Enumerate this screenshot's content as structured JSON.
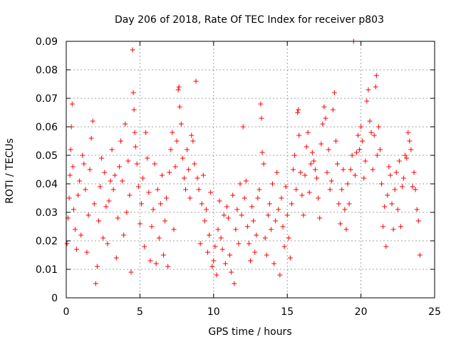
{
  "chart_data": {
    "type": "scatter",
    "title": "Day 206 of 2018, Rate Of TEC Index for receiver p803",
    "xlabel": "GPS time / hours",
    "ylabel": "ROTI / TECUs",
    "xlim": [
      0,
      25
    ],
    "ylim": [
      0,
      0.09
    ],
    "xticks": [
      0,
      5,
      10,
      15,
      20,
      25
    ],
    "yticks": [
      0,
      0.01,
      0.02,
      0.03,
      0.04,
      0.05,
      0.06,
      0.07,
      0.08,
      0.09
    ],
    "xtick_labels": [
      "0",
      "5",
      "10",
      "15",
      "20",
      "25"
    ],
    "ytick_labels": [
      "0",
      "0.01",
      "0.02",
      "0.03",
      "0.04",
      "0.05",
      "0.06",
      "0.07",
      "0.08",
      "0.09"
    ],
    "grid": true,
    "marker": "plus",
    "color": "#ff0000",
    "points": [
      [
        0.05,
        0.019
      ],
      [
        0.12,
        0.028
      ],
      [
        0.2,
        0.035
      ],
      [
        0.25,
        0.043
      ],
      [
        0.3,
        0.052
      ],
      [
        0.35,
        0.06
      ],
      [
        0.4,
        0.068
      ],
      [
        0.45,
        0.046
      ],
      [
        0.5,
        0.031
      ],
      [
        0.6,
        0.024
      ],
      [
        0.7,
        0.017
      ],
      [
        0.8,
        0.036
      ],
      [
        0.9,
        0.041
      ],
      [
        1.0,
        0.022
      ],
      [
        1.1,
        0.05
      ],
      [
        1.2,
        0.047
      ],
      [
        1.3,
        0.038
      ],
      [
        1.4,
        0.016
      ],
      [
        1.5,
        0.029
      ],
      [
        1.6,
        0.045
      ],
      [
        1.7,
        0.056
      ],
      [
        1.8,
        0.062
      ],
      [
        1.9,
        0.033
      ],
      [
        2.0,
        0.005
      ],
      [
        2.1,
        0.011
      ],
      [
        2.2,
        0.027
      ],
      [
        2.3,
        0.039
      ],
      [
        2.4,
        0.049
      ],
      [
        2.5,
        0.021
      ],
      [
        2.6,
        0.044
      ],
      [
        2.7,
        0.032
      ],
      [
        2.8,
        0.019
      ],
      [
        2.9,
        0.034
      ],
      [
        3.0,
        0.041
      ],
      [
        3.1,
        0.052
      ],
      [
        3.2,
        0.038
      ],
      [
        3.3,
        0.043
      ],
      [
        3.4,
        0.014
      ],
      [
        3.5,
        0.028
      ],
      [
        3.6,
        0.046
      ],
      [
        3.7,
        0.055
      ],
      [
        3.8,
        0.041
      ],
      [
        3.9,
        0.022
      ],
      [
        4.0,
        0.061
      ],
      [
        4.1,
        0.03
      ],
      [
        4.2,
        0.048
      ],
      [
        4.3,
        0.036
      ],
      [
        4.4,
        0.009
      ],
      [
        4.5,
        0.087
      ],
      [
        4.55,
        0.072
      ],
      [
        4.6,
        0.066
      ],
      [
        4.65,
        0.058
      ],
      [
        4.7,
        0.053
      ],
      [
        4.8,
        0.047
      ],
      [
        4.9,
        0.039
      ],
      [
        5.0,
        0.026
      ],
      [
        5.1,
        0.033
      ],
      [
        5.2,
        0.042
      ],
      [
        5.3,
        0.018
      ],
      [
        5.4,
        0.058
      ],
      [
        5.5,
        0.049
      ],
      [
        5.6,
        0.037
      ],
      [
        5.7,
        0.013
      ],
      [
        5.8,
        0.025
      ],
      [
        5.9,
        0.031
      ],
      [
        6.0,
        0.047
      ],
      [
        6.1,
        0.012
      ],
      [
        6.2,
        0.038
      ],
      [
        6.3,
        0.021
      ],
      [
        6.4,
        0.033
      ],
      [
        6.5,
        0.043
      ],
      [
        6.6,
        0.015
      ],
      [
        6.7,
        0.027
      ],
      [
        6.8,
        0.035
      ],
      [
        6.9,
        0.011
      ],
      [
        7.0,
        0.044
      ],
      [
        7.1,
        0.052
      ],
      [
        7.2,
        0.058
      ],
      [
        7.3,
        0.024
      ],
      [
        7.4,
        0.046
      ],
      [
        7.5,
        0.055
      ],
      [
        7.6,
        0.073
      ],
      [
        7.65,
        0.074
      ],
      [
        7.7,
        0.067
      ],
      [
        7.8,
        0.061
      ],
      [
        7.9,
        0.049
      ],
      [
        8.0,
        0.042
      ],
      [
        8.1,
        0.038
      ],
      [
        8.2,
        0.052
      ],
      [
        8.3,
        0.045
      ],
      [
        8.4,
        0.035
      ],
      [
        8.5,
        0.057
      ],
      [
        8.6,
        0.055
      ],
      [
        8.7,
        0.047
      ],
      [
        8.8,
        0.076
      ],
      [
        8.9,
        0.042
      ],
      [
        9.0,
        0.038
      ],
      [
        9.1,
        0.019
      ],
      [
        9.2,
        0.033
      ],
      [
        9.3,
        0.043
      ],
      [
        9.4,
        0.027
      ],
      [
        9.5,
        0.031
      ],
      [
        9.6,
        0.016
      ],
      [
        9.7,
        0.022
      ],
      [
        9.8,
        0.037
      ],
      [
        9.9,
        0.011
      ],
      [
        10.0,
        0.013
      ],
      [
        10.1,
        0.018
      ],
      [
        10.2,
        0.008
      ],
      [
        10.3,
        0.024
      ],
      [
        10.4,
        0.034
      ],
      [
        10.5,
        0.021
      ],
      [
        10.6,
        0.017
      ],
      [
        10.7,
        0.029
      ],
      [
        10.8,
        0.012
      ],
      [
        10.9,
        0.032
      ],
      [
        11.0,
        0.028
      ],
      [
        11.1,
        0.015
      ],
      [
        11.2,
        0.009
      ],
      [
        11.3,
        0.036
      ],
      [
        11.4,
        0.005
      ],
      [
        11.5,
        0.024
      ],
      [
        11.6,
        0.031
      ],
      [
        11.7,
        0.019
      ],
      [
        11.8,
        0.04
      ],
      [
        11.9,
        0.029
      ],
      [
        12.0,
        0.06
      ],
      [
        12.1,
        0.035
      ],
      [
        12.2,
        0.041
      ],
      [
        12.3,
        0.025
      ],
      [
        12.4,
        0.019
      ],
      [
        12.5,
        0.013
      ],
      [
        12.6,
        0.032
      ],
      [
        12.7,
        0.027
      ],
      [
        12.8,
        0.016
      ],
      [
        12.9,
        0.022
      ],
      [
        13.0,
        0.035
      ],
      [
        13.1,
        0.038
      ],
      [
        13.2,
        0.068
      ],
      [
        13.25,
        0.063
      ],
      [
        13.3,
        0.051
      ],
      [
        13.4,
        0.047
      ],
      [
        13.5,
        0.021
      ],
      [
        13.6,
        0.015
      ],
      [
        13.7,
        0.029
      ],
      [
        13.8,
        0.033
      ],
      [
        13.9,
        0.024
      ],
      [
        14.0,
        0.04
      ],
      [
        14.1,
        0.012
      ],
      [
        14.2,
        0.027
      ],
      [
        14.3,
        0.044
      ],
      [
        14.4,
        0.031
      ],
      [
        14.5,
        0.008
      ],
      [
        14.6,
        0.035
      ],
      [
        14.7,
        0.025
      ],
      [
        14.8,
        0.018
      ],
      [
        14.9,
        0.039
      ],
      [
        15.0,
        0.029
      ],
      [
        15.1,
        0.021
      ],
      [
        15.2,
        0.014
      ],
      [
        15.3,
        0.033
      ],
      [
        15.4,
        0.045
      ],
      [
        15.5,
        0.05
      ],
      [
        15.6,
        0.038
      ],
      [
        15.7,
        0.065
      ],
      [
        15.75,
        0.066
      ],
      [
        15.8,
        0.057
      ],
      [
        15.9,
        0.044
      ],
      [
        16.0,
        0.036
      ],
      [
        16.1,
        0.029
      ],
      [
        16.2,
        0.043
      ],
      [
        16.3,
        0.053
      ],
      [
        16.4,
        0.058
      ],
      [
        16.5,
        0.037
      ],
      [
        16.6,
        0.047
      ],
      [
        16.7,
        0.051
      ],
      [
        16.8,
        0.048
      ],
      [
        16.9,
        0.045
      ],
      [
        17.0,
        0.042
      ],
      [
        17.1,
        0.035
      ],
      [
        17.2,
        0.028
      ],
      [
        17.3,
        0.054
      ],
      [
        17.4,
        0.061
      ],
      [
        17.5,
        0.067
      ],
      [
        17.6,
        0.063
      ],
      [
        17.7,
        0.044
      ],
      [
        17.8,
        0.052
      ],
      [
        17.9,
        0.038
      ],
      [
        18.0,
        0.041
      ],
      [
        18.1,
        0.066
      ],
      [
        18.2,
        0.072
      ],
      [
        18.3,
        0.055
      ],
      [
        18.4,
        0.047
      ],
      [
        18.5,
        0.033
      ],
      [
        18.6,
        0.026
      ],
      [
        18.7,
        0.038
      ],
      [
        18.8,
        0.045
      ],
      [
        18.9,
        0.031
      ],
      [
        19.0,
        0.024
      ],
      [
        19.1,
        0.04
      ],
      [
        19.2,
        0.033
      ],
      [
        19.3,
        0.045
      ],
      [
        19.4,
        0.05
      ],
      [
        19.5,
        0.09
      ],
      [
        19.6,
        0.043
      ],
      [
        19.7,
        0.051
      ],
      [
        19.8,
        0.057
      ],
      [
        19.9,
        0.052
      ],
      [
        20.0,
        0.06
      ],
      [
        20.1,
        0.055
      ],
      [
        20.2,
        0.042
      ],
      [
        20.3,
        0.048
      ],
      [
        20.4,
        0.069
      ],
      [
        20.5,
        0.073
      ],
      [
        20.6,
        0.062
      ],
      [
        20.7,
        0.058
      ],
      [
        20.8,
        0.045
      ],
      [
        20.9,
        0.057
      ],
      [
        21.0,
        0.074
      ],
      [
        21.05,
        0.078
      ],
      [
        21.1,
        0.05
      ],
      [
        21.2,
        0.06
      ],
      [
        21.3,
        0.052
      ],
      [
        21.4,
        0.04
      ],
      [
        21.5,
        0.025
      ],
      [
        21.6,
        0.032
      ],
      [
        21.7,
        0.018
      ],
      [
        21.8,
        0.036
      ],
      [
        21.9,
        0.046
      ],
      [
        22.0,
        0.043
      ],
      [
        22.1,
        0.033
      ],
      [
        22.2,
        0.024
      ],
      [
        22.3,
        0.038
      ],
      [
        22.4,
        0.044
      ],
      [
        22.5,
        0.031
      ],
      [
        22.6,
        0.048
      ],
      [
        22.7,
        0.025
      ],
      [
        22.8,
        0.039
      ],
      [
        22.9,
        0.042
      ],
      [
        23.0,
        0.05
      ],
      [
        23.1,
        0.049
      ],
      [
        23.2,
        0.058
      ],
      [
        23.3,
        0.055
      ],
      [
        23.4,
        0.052
      ],
      [
        23.5,
        0.039
      ],
      [
        23.6,
        0.044
      ],
      [
        23.7,
        0.038
      ],
      [
        23.8,
        0.031
      ],
      [
        23.9,
        0.027
      ],
      [
        24.0,
        0.015
      ]
    ]
  }
}
